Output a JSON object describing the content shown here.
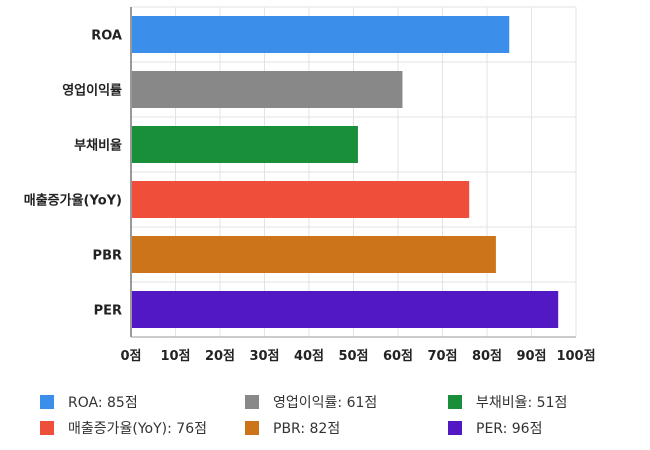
{
  "chart_data": {
    "type": "bar",
    "orientation": "horizontal",
    "categories": [
      "ROA",
      "영업이익률",
      "부채비율",
      "매출증가율(YoY)",
      "PBR",
      "PER"
    ],
    "values": [
      85,
      61,
      51,
      76,
      82,
      96
    ],
    "colors": [
      "#3b8eea",
      "#888888",
      "#1a8f3a",
      "#ee4e3a",
      "#cc7419",
      "#5118c4"
    ],
    "xlim": [
      0,
      100
    ],
    "xticks": [
      0,
      10,
      20,
      30,
      40,
      50,
      60,
      70,
      80,
      90,
      100
    ],
    "tick_suffix": "점",
    "grid": true,
    "legend_position": "bottom"
  },
  "legend": [
    {
      "label": "ROA: 85점",
      "color": "#3b8eea"
    },
    {
      "label": "영업이익률: 61점",
      "color": "#888888"
    },
    {
      "label": "부채비율: 51점",
      "color": "#1a8f3a"
    },
    {
      "label": "매출증가율(YoY): 76점",
      "color": "#ee4e3a"
    },
    {
      "label": "PBR: 82점",
      "color": "#cc7419"
    },
    {
      "label": "PER: 96점",
      "color": "#5118c4"
    }
  ]
}
